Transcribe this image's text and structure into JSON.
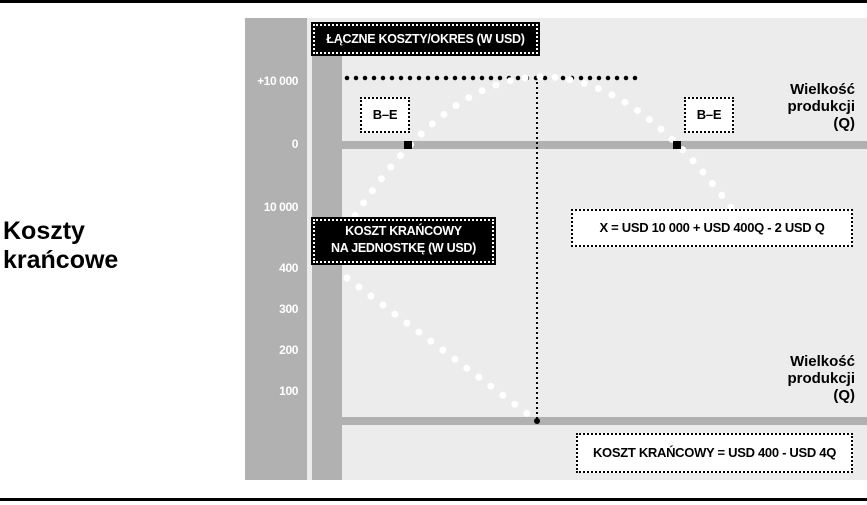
{
  "side_title": {
    "line1": "Koszty",
    "line2": "krańcowe"
  },
  "top_chart": {
    "title": "ŁĄCZNE KOSZTY/OKRES (W USD)",
    "y_ticks": [
      "+10 000",
      "0",
      "10 000"
    ],
    "x_axis_label": {
      "line1": "Wielkość",
      "line2": "produkcji",
      "line3": "(Q)"
    },
    "break_even_labels": [
      "B–E",
      "B–E"
    ],
    "equation": "X = USD 10 000 + USD 400Q - 2 USD Q"
  },
  "bottom_chart": {
    "title": {
      "line1": "KOSZT KRAŃCOWY",
      "line2": "NA JEDNOSTKĘ (W USD)"
    },
    "y_ticks": [
      "400",
      "300",
      "200",
      "100"
    ],
    "x_axis_label": {
      "line1": "Wielkość",
      "line2": "produkcji",
      "line3": "(Q)"
    },
    "equation": "KOSZT KRAŃCOWY = USD 400 - USD 4Q"
  },
  "colors": {
    "panel": "#ececec",
    "axis_gray": "#b1b1b1",
    "ink": "#000000",
    "dots": "#ffffff"
  },
  "chart_data": [
    {
      "type": "line",
      "title": "ŁĄCZNE KOSZTY/OKRES (W USD)",
      "xlabel": "Wielkość produkcji (Q)",
      "ylabel": "",
      "series": [
        {
          "x": [
            0,
            10,
            20,
            30,
            40,
            50,
            60,
            70,
            80,
            90,
            100
          ],
          "values": [
            -10000,
            -6200,
            -2800,
            200,
            2800,
            5000,
            6800,
            8200,
            9200,
            9800,
            10000
          ]
        }
      ],
      "annotations": [
        "B–E",
        "B–E",
        "X = USD 10 000 + USD 400Q - 2 USD Q"
      ]
    },
    {
      "type": "line",
      "title": "KOSZT KRAŃCOWY NA JEDNOSTKĘ (W USD)",
      "xlabel": "Wielkość produkcji (Q)",
      "ylabel": "",
      "series": [
        {
          "x": [
            0,
            100
          ],
          "values": [
            400,
            0
          ]
        }
      ],
      "yticks": [
        400,
        300,
        200,
        100
      ],
      "annotations": [
        "KOSZT KRAŃCOWY = USD 400 - USD 4Q"
      ]
    }
  ]
}
